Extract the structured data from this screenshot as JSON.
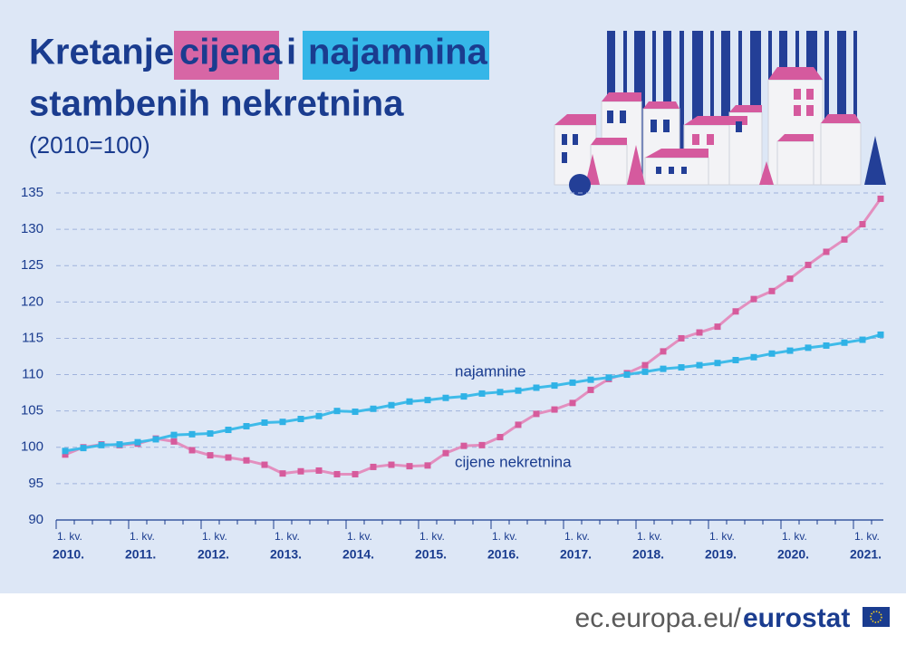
{
  "chart_data": {
    "type": "line",
    "title": {
      "part1": "Kretanje",
      "highlight1": "cijena",
      "part2": "i",
      "highlight2": "najamnina",
      "line2": "stambenih nekretnina"
    },
    "subtitle": "(2010=100)",
    "quarter_label": "1. kv.",
    "categories": [
      "2010.",
      null,
      null,
      null,
      "2011.",
      null,
      null,
      null,
      "2012.",
      null,
      null,
      null,
      "2013.",
      null,
      null,
      null,
      "2014.",
      null,
      null,
      null,
      "2015.",
      null,
      null,
      null,
      "2016.",
      null,
      null,
      null,
      "2017.",
      null,
      null,
      null,
      "2018.",
      null,
      null,
      null,
      "2019.",
      null,
      null,
      null,
      "2020.",
      null,
      null,
      null,
      "2021.",
      null
    ],
    "series": [
      {
        "name": "cijene nekretnina",
        "color": "#d65b9c",
        "line_color": "#e38fbf",
        "values": [
          99.0,
          100.0,
          100.4,
          100.3,
          100.5,
          101.2,
          100.8,
          99.6,
          98.9,
          98.6,
          98.2,
          97.6,
          96.4,
          96.7,
          96.8,
          96.3,
          96.3,
          97.3,
          97.6,
          97.4,
          97.5,
          99.2,
          100.2,
          100.3,
          101.4,
          103.1,
          104.6,
          105.2,
          106.1,
          107.9,
          109.4,
          110.2,
          111.3,
          113.2,
          115.0,
          115.8,
          116.6,
          118.7,
          120.4,
          121.5,
          123.2,
          125.1,
          126.9,
          128.6,
          130.7,
          134.2
        ]
      },
      {
        "name": "najamnine",
        "color": "#2fb2e6",
        "line_color": "#3fbbe9",
        "values": [
          99.5,
          99.9,
          100.3,
          100.4,
          100.7,
          101.1,
          101.7,
          101.8,
          101.9,
          102.4,
          102.9,
          103.4,
          103.5,
          103.9,
          104.3,
          105.0,
          104.9,
          105.3,
          105.8,
          106.3,
          106.5,
          106.8,
          107.0,
          107.4,
          107.6,
          107.8,
          108.2,
          108.5,
          108.9,
          109.3,
          109.6,
          110.0,
          110.4,
          110.8,
          111.0,
          111.3,
          111.6,
          112.0,
          112.4,
          112.9,
          113.3,
          113.7,
          114.0,
          114.4,
          114.8,
          115.5
        ]
      }
    ],
    "ylim": [
      90,
      135
    ],
    "yticks": [
      90,
      95,
      100,
      105,
      110,
      115,
      120,
      125,
      130,
      135
    ],
    "grid": true,
    "footer": {
      "site": "ec.europa.eu/",
      "brand": "eurostat"
    }
  }
}
